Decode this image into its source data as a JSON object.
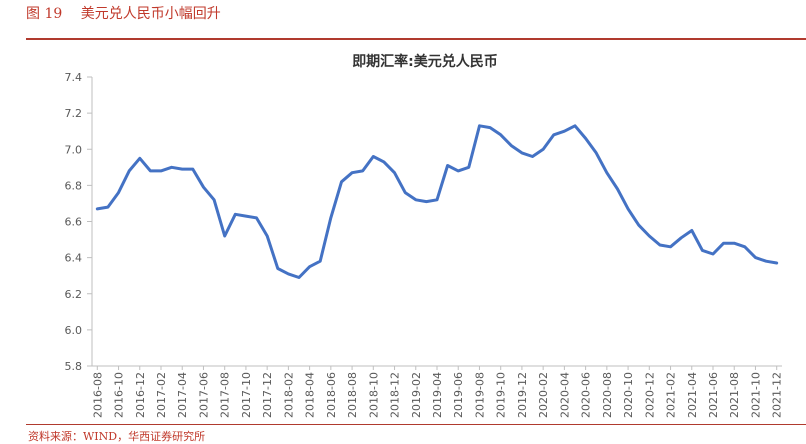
{
  "caption": {
    "number": "图 19",
    "text": "美元兑人民币小幅回升"
  },
  "source": "资料来源：WIND，华西证券研究所",
  "colors": {
    "line": "#4472C4",
    "accent": "#C0392B",
    "axis": "#BFBFBF"
  },
  "chart_data": {
    "type": "line",
    "title": "即期汇率:美元兑人民币",
    "xlabel": "",
    "ylabel": "",
    "ylim": [
      5.8,
      7.4
    ],
    "yticks": [
      5.8,
      6.0,
      6.2,
      6.4,
      6.6,
      6.8,
      7.0,
      7.2,
      7.4
    ],
    "grid": false,
    "legend": "none",
    "x_tick_labels": [
      "2016-08",
      "2016-10",
      "2016-12",
      "2017-02",
      "2017-04",
      "2017-06",
      "2017-08",
      "2017-10",
      "2017-12",
      "2018-02",
      "2018-04",
      "2018-06",
      "2018-08",
      "2018-10",
      "2018-12",
      "2019-02",
      "2019-04",
      "2019-06",
      "2019-08",
      "2019-10",
      "2019-12",
      "2020-02",
      "2020-04",
      "2020-06",
      "2020-08",
      "2020-10",
      "2020-12",
      "2021-02",
      "2021-04",
      "2021-06",
      "2021-08",
      "2021-10",
      "2021-12"
    ],
    "series": [
      {
        "name": "",
        "x": [
          "2016-08",
          "2016-09",
          "2016-10",
          "2016-11",
          "2016-12",
          "2017-01",
          "2017-02",
          "2017-03",
          "2017-04",
          "2017-05",
          "2017-06",
          "2017-07",
          "2017-08",
          "2017-09",
          "2017-10",
          "2017-11",
          "2017-12",
          "2018-01",
          "2018-02",
          "2018-03",
          "2018-04",
          "2018-05",
          "2018-06",
          "2018-07",
          "2018-08",
          "2018-09",
          "2018-10",
          "2018-11",
          "2018-12",
          "2019-01",
          "2019-02",
          "2019-03",
          "2019-04",
          "2019-05",
          "2019-06",
          "2019-07",
          "2019-08",
          "2019-09",
          "2019-10",
          "2019-11",
          "2019-12",
          "2020-01",
          "2020-02",
          "2020-03",
          "2020-04",
          "2020-05",
          "2020-06",
          "2020-07",
          "2020-08",
          "2020-09",
          "2020-10",
          "2020-11",
          "2020-12",
          "2021-01",
          "2021-02",
          "2021-03",
          "2021-04",
          "2021-05",
          "2021-06",
          "2021-07",
          "2021-08",
          "2021-09",
          "2021-10",
          "2021-11",
          "2021-12"
        ],
        "values": [
          6.67,
          6.68,
          6.76,
          6.88,
          6.95,
          6.88,
          6.88,
          6.9,
          6.89,
          6.89,
          6.79,
          6.72,
          6.52,
          6.64,
          6.63,
          6.62,
          6.52,
          6.34,
          6.31,
          6.29,
          6.35,
          6.38,
          6.62,
          6.82,
          6.87,
          6.88,
          6.96,
          6.93,
          6.87,
          6.76,
          6.72,
          6.71,
          6.72,
          6.91,
          6.88,
          6.9,
          7.13,
          7.12,
          7.08,
          7.02,
          6.98,
          6.96,
          7.0,
          7.08,
          7.1,
          7.13,
          7.06,
          6.98,
          6.87,
          6.78,
          6.67,
          6.58,
          6.52,
          6.47,
          6.46,
          6.51,
          6.55,
          6.44,
          6.42,
          6.48,
          6.48,
          6.46,
          6.4,
          6.38,
          6.37
        ]
      }
    ]
  }
}
